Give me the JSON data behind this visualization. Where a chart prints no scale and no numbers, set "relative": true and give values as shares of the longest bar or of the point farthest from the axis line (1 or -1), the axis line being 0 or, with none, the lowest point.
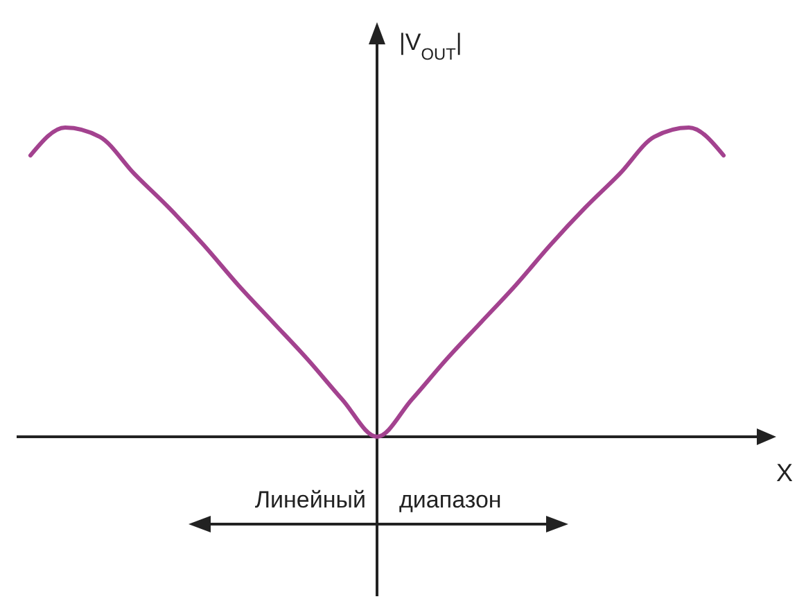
{
  "chart_data": {
    "type": "line",
    "relative": true,
    "xlabel": "X",
    "ylabel": "|V$_{OUT}$|",
    "categories": [
      null,
      null,
      null,
      null,
      null,
      null,
      null,
      null,
      null,
      null,
      null,
      null,
      null,
      null,
      null,
      null,
      null,
      null,
      null,
      null,
      null
    ],
    "series": [
      {
        "color": "#a3428f",
        "values": [
          0.91,
          1,
          0.97,
          0.85,
          0.74,
          0.62,
          0.49,
          0.37,
          0.25,
          0.12,
          0,
          0.12,
          0.25,
          0.37,
          0.49,
          0.62,
          0.74,
          0.85,
          0.97,
          1,
          0.91
        ]
      }
    ],
    "annotations": [
      "Линейный диапазон"
    ],
    "line_style": "solid"
  }
}
